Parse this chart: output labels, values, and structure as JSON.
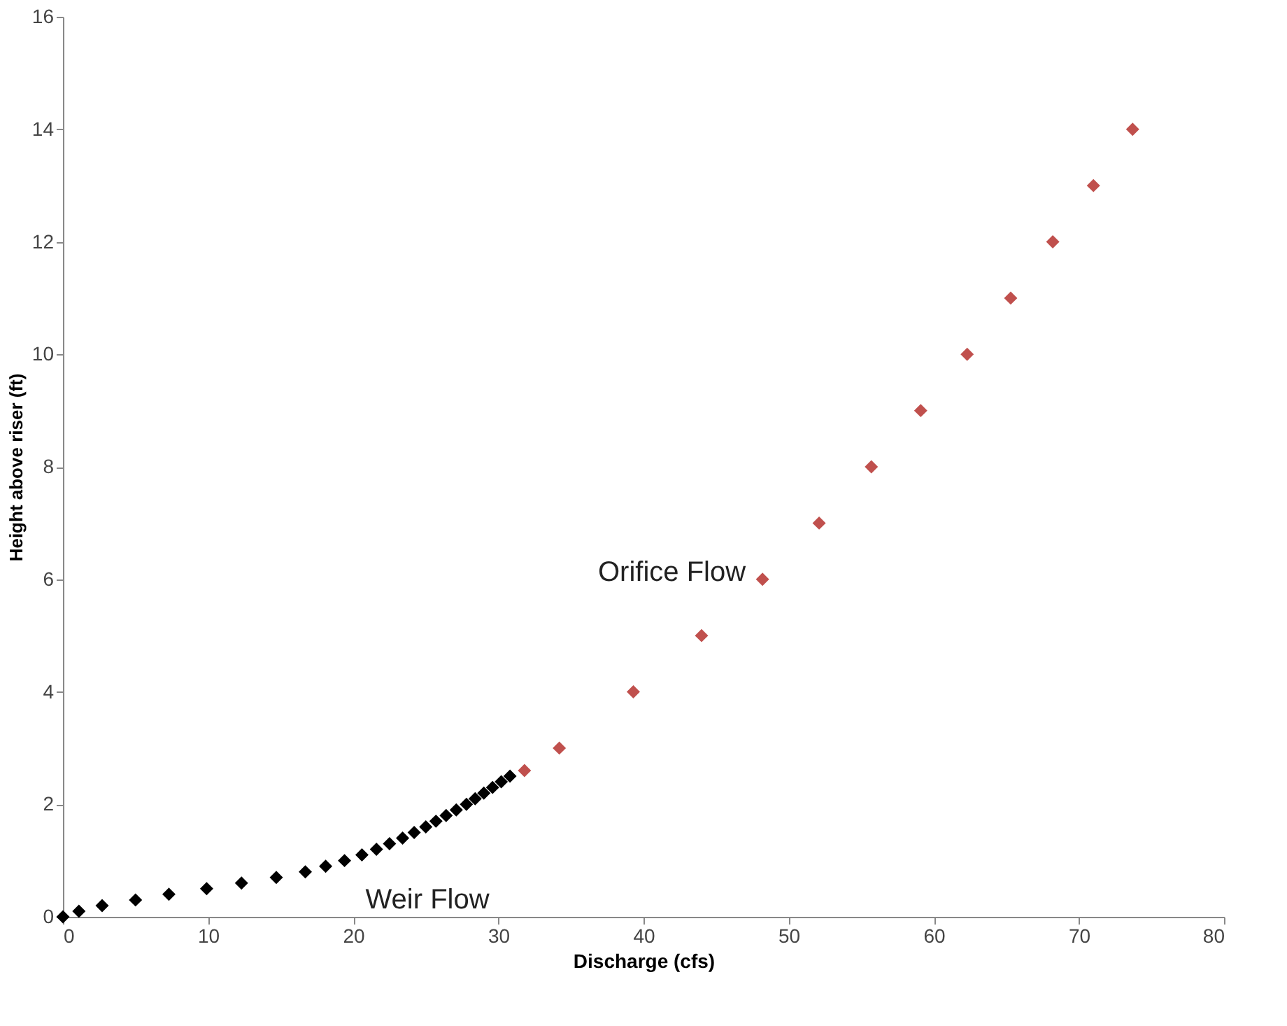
{
  "chart_data": {
    "type": "scatter",
    "xlabel": "Discharge (cfs)",
    "ylabel": "Height above riser (ft)",
    "xlim": [
      0,
      80
    ],
    "xticks": [
      0,
      10,
      20,
      30,
      40,
      50,
      60,
      70,
      80
    ],
    "ylim": [
      0,
      16
    ],
    "yticks": [
      0,
      2,
      4,
      6,
      8,
      10,
      12,
      14,
      16
    ],
    "grid": false,
    "legend": false,
    "marker": "diamond",
    "series": [
      {
        "name": "Weir Flow",
        "color": "#000000",
        "x": [
          0,
          1.1,
          2.7,
          5.0,
          7.3,
          9.9,
          12.3,
          14.7,
          16.7,
          18.1,
          19.4,
          20.6,
          21.6,
          22.5,
          23.4,
          24.2,
          25.0,
          25.7,
          26.4,
          27.1,
          27.8,
          28.4,
          29.0,
          29.6,
          30.2,
          30.8
        ],
        "values": [
          0,
          0.1,
          0.2,
          0.3,
          0.4,
          0.5,
          0.6,
          0.7,
          0.8,
          0.9,
          1.0,
          1.1,
          1.2,
          1.3,
          1.4,
          1.5,
          1.6,
          1.7,
          1.8,
          1.9,
          2.0,
          2.1,
          2.2,
          2.3,
          2.4,
          2.5
        ]
      },
      {
        "name": "Orifice Flow",
        "color": "#c0504d",
        "x": [
          31.8,
          34.2,
          39.3,
          44.0,
          48.2,
          52.1,
          55.7,
          59.1,
          62.3,
          65.3,
          68.2,
          71.0,
          73.7
        ],
        "values": [
          2.6,
          3,
          4,
          5,
          6,
          7,
          8,
          9,
          10,
          11,
          12,
          13,
          14
        ]
      }
    ]
  }
}
